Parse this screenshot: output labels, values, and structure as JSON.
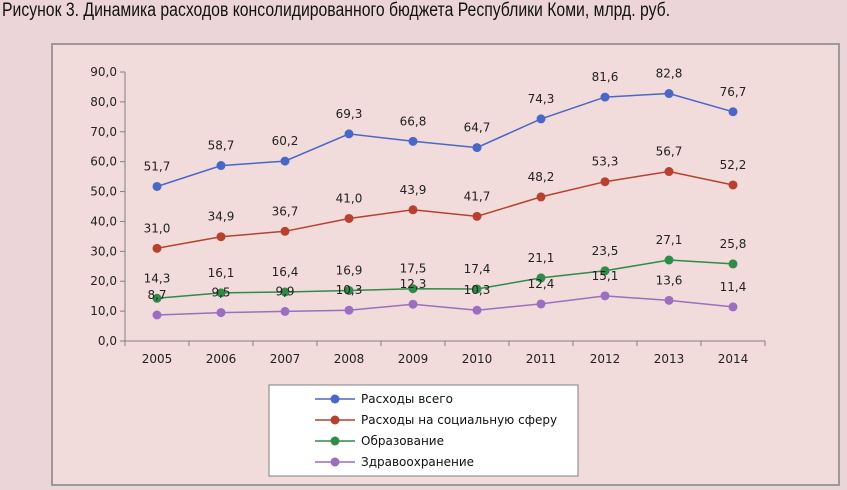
{
  "title": "Рисунок 3. Динамика расходов консолидированного бюджета Республики Коми, млрд. руб.",
  "chart_data": {
    "type": "line",
    "title": "Рисунок 3. Динамика расходов консолидированного бюджета Республики Коми, млрд. руб.",
    "xlabel": "",
    "ylabel": "",
    "categories": [
      "2005",
      "2006",
      "2007",
      "2008",
      "2009",
      "2010",
      "2011",
      "2012",
      "2013",
      "2014"
    ],
    "ylim": [
      0,
      90
    ],
    "yticks": [
      0,
      10,
      20,
      30,
      40,
      50,
      60,
      70,
      80,
      90
    ],
    "ytick_labels": [
      "0,0",
      "10,0",
      "20,0",
      "30,0",
      "40,0",
      "50,0",
      "60,0",
      "70,0",
      "80,0",
      "90,0"
    ],
    "grid": false,
    "legend_position": "bottom",
    "series": [
      {
        "name": "Расходы всего",
        "color": "#4a66c6",
        "values": [
          51.7,
          58.7,
          60.2,
          69.3,
          66.8,
          64.7,
          74.3,
          81.6,
          82.8,
          76.7
        ],
        "labels": [
          "51,7",
          "58,7",
          "60,2",
          "69,3",
          "66,8",
          "64,7",
          "74,3",
          "81,6",
          "82,8",
          "76,7"
        ]
      },
      {
        "name": "Расходы на социальную сферу",
        "color": "#b8402e",
        "values": [
          31.0,
          34.9,
          36.7,
          41.0,
          43.9,
          41.7,
          48.2,
          53.3,
          56.7,
          52.2
        ],
        "labels": [
          "31,0",
          "34,9",
          "36,7",
          "41,0",
          "43,9",
          "41,7",
          "48,2",
          "53,3",
          "56,7",
          "52,2"
        ]
      },
      {
        "name": "Образование",
        "color": "#2e8b4a",
        "values": [
          14.3,
          16.1,
          16.4,
          16.9,
          17.5,
          17.4,
          21.1,
          23.5,
          27.1,
          25.8
        ],
        "labels": [
          "14,3",
          "16,1",
          "16,4",
          "16,9",
          "17,5",
          "17,4",
          "21,1",
          "23,5",
          "27,1",
          "25,8"
        ]
      },
      {
        "name": "Здравоохранение",
        "color": "#9b6fc0",
        "values": [
          8.7,
          9.5,
          9.9,
          10.3,
          12.3,
          10.3,
          12.4,
          15.1,
          13.6,
          11.4
        ],
        "labels": [
          "8,7",
          "9,5",
          "9,9",
          "10,3",
          "12,3",
          "10,3",
          "12,4",
          "15,1",
          "13,6",
          "11,4"
        ]
      }
    ]
  }
}
